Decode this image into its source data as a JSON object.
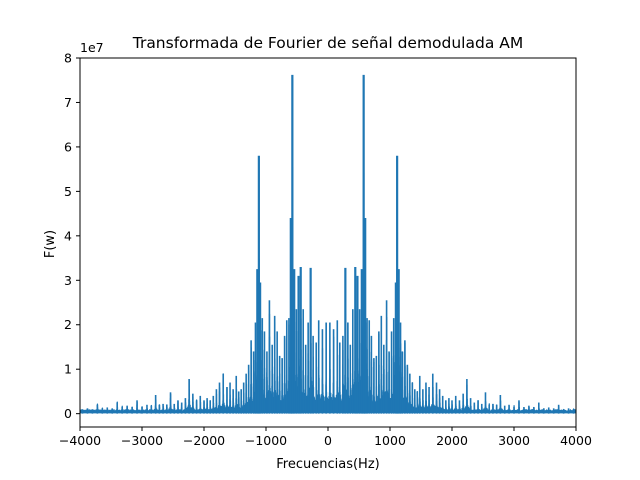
{
  "chart_data": {
    "type": "line",
    "title": "Transformada de Fourier de señal demodulada AM",
    "xlabel": "Frecuencias(Hz)",
    "ylabel": "F(w)",
    "y_offset_label": "1e7",
    "xlim": [
      -4000,
      4000
    ],
    "ylim": [
      -0.3,
      8
    ],
    "xticks": [
      -4000,
      -3000,
      -2000,
      -1000,
      0,
      1000,
      2000,
      3000,
      4000
    ],
    "xtick_labels": [
      "−4000",
      "−3000",
      "−2000",
      "−1000",
      "0",
      "1000",
      "2000",
      "3000",
      "4000"
    ],
    "yticks": [
      0,
      1,
      2,
      3,
      4,
      5,
      6,
      7,
      8
    ],
    "ytick_labels": [
      "0",
      "1",
      "2",
      "3",
      "4",
      "5",
      "6",
      "7",
      "8"
    ],
    "y_scale_factor": 10000000,
    "grid": false,
    "color": "#1f77b4",
    "series": [
      {
        "peaks": [
          {
            "x": 30,
            "y": 2.05
          },
          {
            "x": 90,
            "y": 1.9
          },
          {
            "x": 150,
            "y": 2.1
          },
          {
            "x": 190,
            "y": 1.6
          },
          {
            "x": 240,
            "y": 1.75
          },
          {
            "x": 280,
            "y": 3.28
          },
          {
            "x": 320,
            "y": 2.05
          },
          {
            "x": 360,
            "y": 1.55
          },
          {
            "x": 400,
            "y": 2.35
          },
          {
            "x": 440,
            "y": 3.3
          },
          {
            "x": 475,
            "y": 3.1
          },
          {
            "x": 510,
            "y": 2.35
          },
          {
            "x": 545,
            "y": 3.25
          },
          {
            "x": 575,
            "y": 7.62
          },
          {
            "x": 600,
            "y": 4.4
          },
          {
            "x": 630,
            "y": 2.15
          },
          {
            "x": 665,
            "y": 2.1
          },
          {
            "x": 700,
            "y": 1.75
          },
          {
            "x": 740,
            "y": 1.25
          },
          {
            "x": 780,
            "y": 1.3
          },
          {
            "x": 820,
            "y": 1.85
          },
          {
            "x": 860,
            "y": 2.2
          },
          {
            "x": 900,
            "y": 1.55
          },
          {
            "x": 945,
            "y": 2.55
          },
          {
            "x": 985,
            "y": 1.4
          },
          {
            "x": 1025,
            "y": 1.85
          },
          {
            "x": 1060,
            "y": 2.15
          },
          {
            "x": 1090,
            "y": 2.95
          },
          {
            "x": 1115,
            "y": 5.8
          },
          {
            "x": 1140,
            "y": 3.25
          },
          {
            "x": 1170,
            "y": 2.05
          },
          {
            "x": 1200,
            "y": 1.4
          },
          {
            "x": 1240,
            "y": 1.65
          },
          {
            "x": 1280,
            "y": 1.1
          },
          {
            "x": 1320,
            "y": 0.9
          },
          {
            "x": 1360,
            "y": 0.7
          },
          {
            "x": 1400,
            "y": 0.55
          },
          {
            "x": 1440,
            "y": 0.5
          },
          {
            "x": 1480,
            "y": 0.85
          },
          {
            "x": 1530,
            "y": 0.55
          },
          {
            "x": 1580,
            "y": 0.7
          },
          {
            "x": 1630,
            "y": 0.6
          },
          {
            "x": 1690,
            "y": 0.9
          },
          {
            "x": 1750,
            "y": 0.7
          },
          {
            "x": 1800,
            "y": 0.55
          },
          {
            "x": 1850,
            "y": 0.4
          },
          {
            "x": 1900,
            "y": 0.3
          },
          {
            "x": 1950,
            "y": 0.35
          },
          {
            "x": 2000,
            "y": 0.3
          },
          {
            "x": 2060,
            "y": 0.4
          },
          {
            "x": 2120,
            "y": 0.3
          },
          {
            "x": 2180,
            "y": 0.45
          },
          {
            "x": 2240,
            "y": 0.78
          },
          {
            "x": 2300,
            "y": 0.35
          },
          {
            "x": 2360,
            "y": 0.25
          },
          {
            "x": 2420,
            "y": 0.3
          },
          {
            "x": 2480,
            "y": 0.22
          },
          {
            "x": 2540,
            "y": 0.48
          },
          {
            "x": 2600,
            "y": 0.2
          },
          {
            "x": 2660,
            "y": 0.22
          },
          {
            "x": 2720,
            "y": 0.2
          },
          {
            "x": 2780,
            "y": 0.42
          },
          {
            "x": 2850,
            "y": 0.18
          },
          {
            "x": 2920,
            "y": 0.2
          },
          {
            "x": 3000,
            "y": 0.15
          },
          {
            "x": 3080,
            "y": 0.3
          },
          {
            "x": 3160,
            "y": 0.15
          },
          {
            "x": 3240,
            "y": 0.18
          },
          {
            "x": 3320,
            "y": 0.15
          },
          {
            "x": 3400,
            "y": 0.25
          },
          {
            "x": 3480,
            "y": 0.12
          },
          {
            "x": 3560,
            "y": 0.14
          },
          {
            "x": 3640,
            "y": 0.12
          },
          {
            "x": 3720,
            "y": 0.2
          },
          {
            "x": 3800,
            "y": 0.1
          },
          {
            "x": 3880,
            "y": 0.12
          },
          {
            "x": 3960,
            "y": 0.1
          }
        ],
        "symmetric_about_zero": true
      }
    ]
  }
}
